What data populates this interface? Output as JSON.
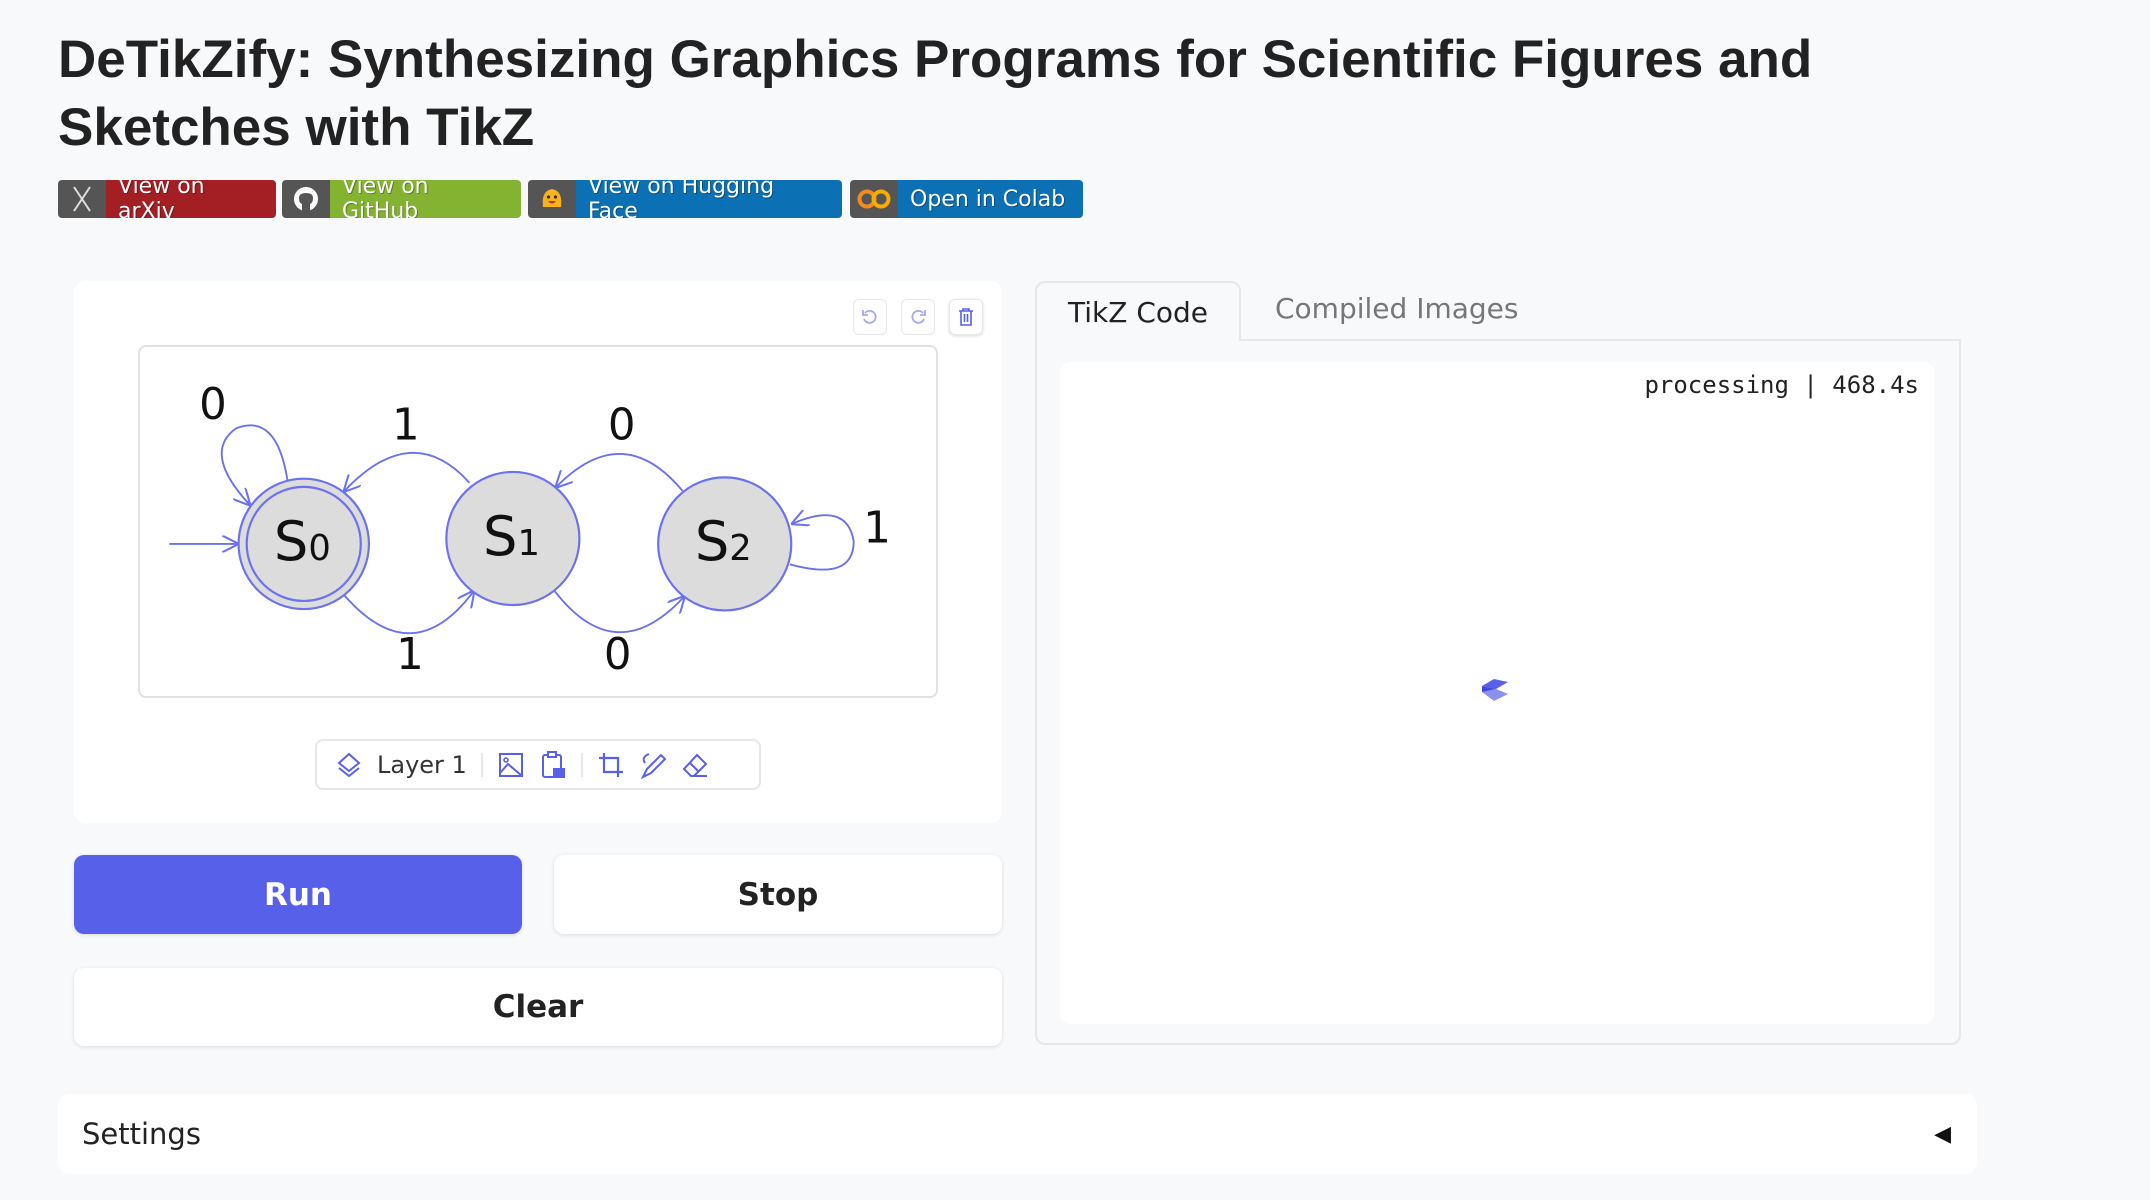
{
  "header": {
    "title": "DeTikZify: Synthesizing Graphics Programs for Scientific Figures and Sketches with TikZ"
  },
  "badges": [
    {
      "label": "View on arXiv",
      "icon": "arxiv-icon",
      "color": "#a31f24"
    },
    {
      "label": "View on GitHub",
      "icon": "github-icon",
      "color": "#84b332"
    },
    {
      "label": "View on Hugging Face",
      "icon": "hugging-face-icon",
      "color": "#0b70b4"
    },
    {
      "label": "Open in Colab",
      "icon": "colab-icon",
      "color": "#0b70b4"
    }
  ],
  "editor": {
    "layer_label": "Layer 1",
    "diagram": {
      "states": [
        "S",
        "S",
        "S"
      ],
      "subs": [
        "0",
        "1",
        "2"
      ],
      "labels": [
        "0",
        "1",
        "0",
        "1",
        "1",
        "0"
      ]
    }
  },
  "buttons": {
    "run": "Run",
    "stop": "Stop",
    "clear": "Clear"
  },
  "output": {
    "tabs": [
      "TikZ Code",
      "Compiled Images"
    ],
    "active_tab": "TikZ Code",
    "status": "processing | 468.4s"
  },
  "settings": {
    "label": "Settings"
  },
  "colors": {
    "accent": "#5760e8",
    "node_fill": "#dcdcdc"
  }
}
